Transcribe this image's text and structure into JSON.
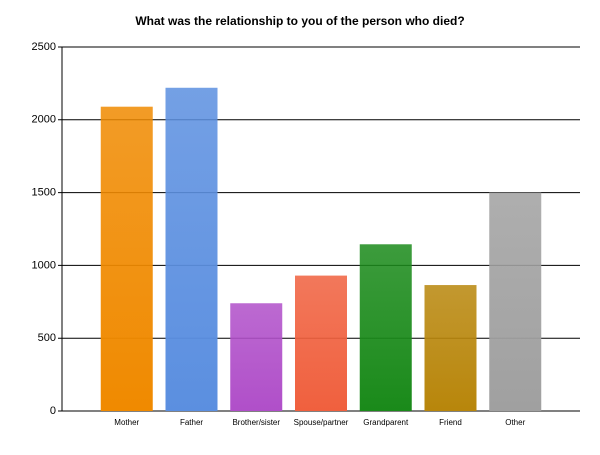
{
  "chart_data": {
    "type": "bar",
    "title": "What was the relationship to you of the person who died?",
    "categories": [
      "Mother",
      "Father",
      "Brother/sister",
      "Spouse/partner",
      "Grandparent",
      "Friend",
      "Other"
    ],
    "values": [
      2090,
      2220,
      740,
      930,
      1145,
      865,
      1500
    ],
    "colors": [
      "#f08a00",
      "#5b8fe0",
      "#b04fc9",
      "#f0603e",
      "#1a8a1a",
      "#b8860b",
      "#a0a0a0"
    ],
    "ylim": [
      0,
      2500
    ],
    "yticks": [
      0,
      500,
      1000,
      1500,
      2000,
      2500
    ],
    "grid": true
  }
}
